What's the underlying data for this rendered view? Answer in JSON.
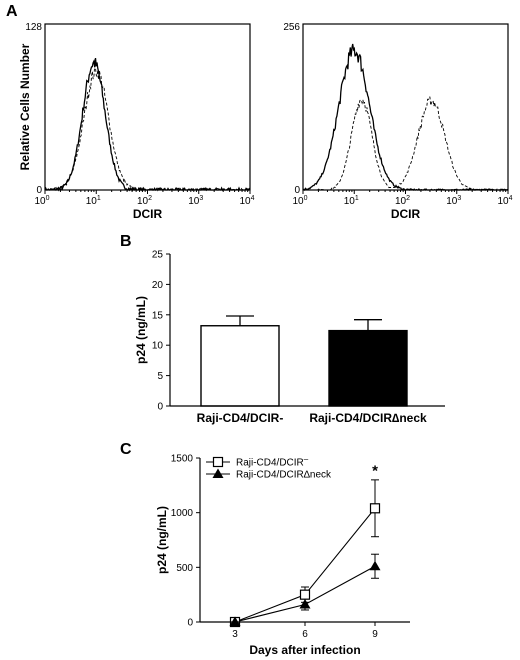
{
  "panels": {
    "a": "A",
    "b": "B",
    "c": "C"
  },
  "chart_data": [
    {
      "type": "line",
      "panel": "A",
      "xlabel": "DCIR",
      "ylabel": "Relative Cells Number",
      "x_scale": "log",
      "xlim": [
        1,
        10000
      ],
      "x_ticks": [
        {
          "base": "10",
          "exp": "0"
        },
        {
          "base": "10",
          "exp": "1"
        },
        {
          "base": "10",
          "exp": "2"
        },
        {
          "base": "10",
          "exp": "3"
        },
        {
          "base": "10",
          "exp": "4"
        }
      ],
      "ylim": [
        0,
        128
      ],
      "y_ticks": [
        "0",
        "128"
      ],
      "series": [
        {
          "style": "solid",
          "peak_x": 9,
          "peak_y": 98,
          "width_decades": 0.22
        },
        {
          "style": "dashed",
          "peak_x": 10,
          "peak_y": 92,
          "width_decades": 0.24
        }
      ]
    },
    {
      "type": "line",
      "panel": "A",
      "xlabel": "DCIR",
      "x_scale": "log",
      "xlim": [
        1,
        10000
      ],
      "x_ticks": [
        {
          "base": "10",
          "exp": "0"
        },
        {
          "base": "10",
          "exp": "1"
        },
        {
          "base": "10",
          "exp": "2"
        },
        {
          "base": "10",
          "exp": "3"
        },
        {
          "base": "10",
          "exp": "4"
        }
      ],
      "ylim": [
        0,
        256
      ],
      "y_ticks": [
        "0",
        "256"
      ],
      "series": [
        {
          "style": "solid",
          "peaks": [
            {
              "peak_x": 10,
              "peak_y": 215,
              "width_decades": 0.3
            }
          ]
        },
        {
          "style": "dashed",
          "peaks": [
            {
              "peak_x": 14,
              "peak_y": 140,
              "width_decades": 0.2
            },
            {
              "peak_x": 320,
              "peak_y": 138,
              "width_decades": 0.26
            }
          ]
        }
      ]
    },
    {
      "type": "bar",
      "panel": "B",
      "categories": [
        "Raji-CD4/DCIR-",
        "Raji-CD4/DCIR∆neck"
      ],
      "values": [
        13.2,
        12.4
      ],
      "errors": [
        1.6,
        1.8
      ],
      "colors": [
        "#ffffff",
        "#000000"
      ],
      "ylabel": "p24 (ng/mL)",
      "ylim": [
        0,
        25
      ],
      "y_ticks": [
        "0",
        "5",
        "10",
        "15",
        "20",
        "25"
      ]
    },
    {
      "type": "line",
      "panel": "C",
      "x": [
        3,
        6,
        9
      ],
      "x_ticks": [
        "3",
        "6",
        "9"
      ],
      "xlim": [
        1.5,
        10.5
      ],
      "xlabel": "Days after infection",
      "ylabel": "p24 (ng/mL)",
      "ylim": [
        0,
        1500
      ],
      "y_ticks": [
        "0",
        "500",
        "1000",
        "1500"
      ],
      "legend_position": "top-left",
      "series": [
        {
          "name": "Raji-CD4/DCIR",
          "name_sup": "–",
          "marker": "open-square",
          "values": [
            0,
            250,
            1040
          ],
          "errors": [
            0,
            70,
            260
          ]
        },
        {
          "name": "Raji-CD4/DCIR∆neck",
          "name_sup": "",
          "marker": "filled-triangle",
          "values": [
            0,
            160,
            510
          ],
          "errors": [
            0,
            50,
            110
          ]
        }
      ],
      "annotations": [
        {
          "x": 9,
          "y": 1360,
          "text": "*"
        }
      ]
    }
  ]
}
